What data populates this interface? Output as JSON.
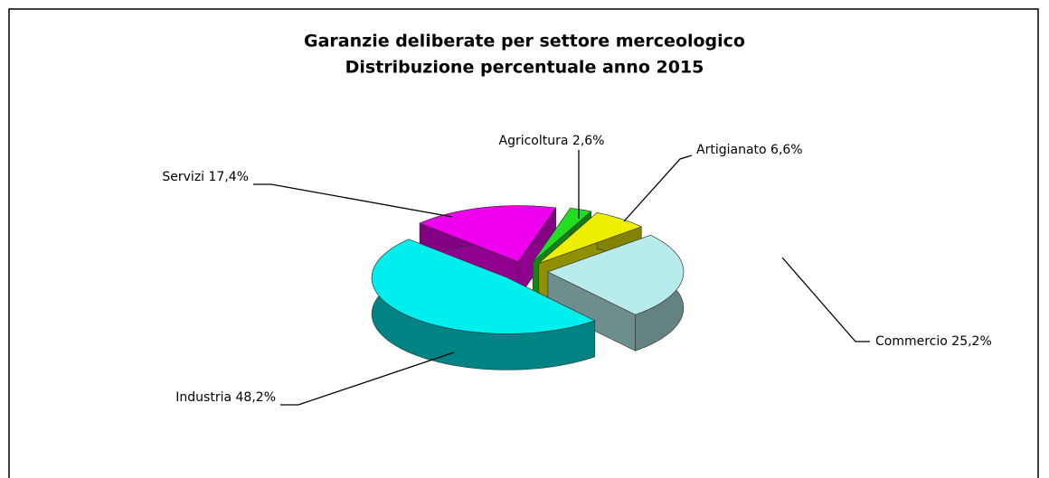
{
  "chart_data": {
    "type": "pie",
    "title": "Garanzie deliberate per settore merceologico",
    "subtitle": "Distribuzione percentuale anno 2015",
    "categories": [
      "Agricoltura",
      "Artigianato",
      "Commercio",
      "Industria",
      "Servizi"
    ],
    "values": [
      2.6,
      6.6,
      25.2,
      48.2,
      17.4
    ],
    "value_labels": [
      "2,6%",
      "6,6%",
      "25,2%",
      "48,2%",
      "17,4%"
    ],
    "colors": [
      "#22dd22",
      "#eeee00",
      "#b8ecec",
      "#00eeee",
      "#ee00ee"
    ]
  }
}
